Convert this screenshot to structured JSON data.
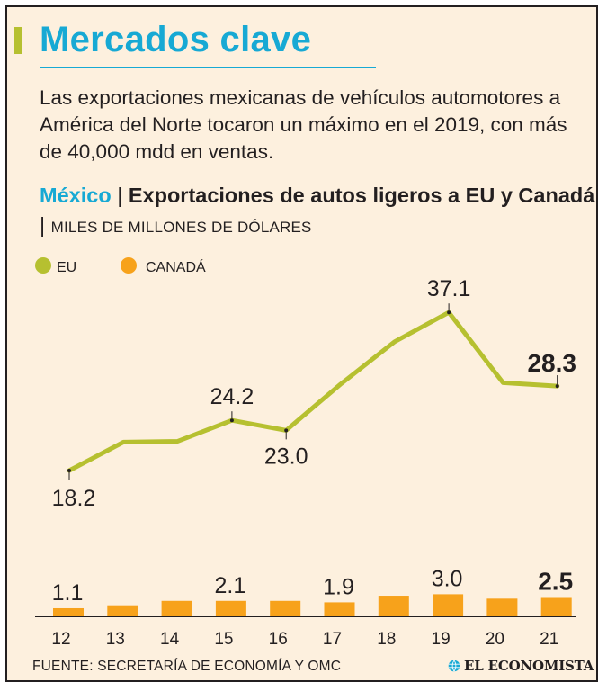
{
  "header": {
    "title": "Mercados clave",
    "intro": "Las exportaciones mexicanas de vehículos automotores a América del Norte tocaron un máximo en el 2019, con más de 40,000 mdd en ventas."
  },
  "subtitle": {
    "country": "México",
    "separator": "|",
    "title": "Exportaciones de autos ligeros a EU y Canadá",
    "units": "MILES DE MILLONES DE DÓLARES"
  },
  "colors": {
    "accent": "#17a9d4",
    "eu_line": "#b6c030",
    "canada_bar": "#f7a21b",
    "background": "#fdf0de",
    "text": "#231f20"
  },
  "chart_data": {
    "type": "line+bar",
    "x": [
      "12",
      "13",
      "14",
      "15",
      "16",
      "17",
      "18",
      "19",
      "20",
      "21"
    ],
    "series": [
      {
        "name": "EU",
        "kind": "line",
        "values": [
          18.2,
          21.6,
          21.7,
          24.2,
          23.0,
          28.5,
          33.6,
          37.1,
          28.7,
          28.3
        ],
        "labeled_indices": [
          0,
          3,
          4,
          7,
          9
        ],
        "label_positions": [
          "below",
          "above",
          "below",
          "above",
          "above"
        ],
        "highlight_index": 9
      },
      {
        "name": "CANADÁ",
        "kind": "bar",
        "values": [
          1.1,
          1.5,
          2.1,
          2.1,
          2.1,
          1.9,
          2.8,
          3.0,
          2.4,
          2.5
        ],
        "labeled_indices": [
          0,
          3,
          5,
          7,
          9
        ],
        "highlight_index": 9
      }
    ],
    "legend": [
      {
        "name": "EU",
        "icon": "circle-dot-icon"
      },
      {
        "name": "CANADÁ",
        "icon": "circle-dot-icon"
      }
    ],
    "legend_position": "top-left",
    "eu_range": [
      15,
      40
    ],
    "canada_range": [
      0,
      3.5
    ],
    "grid": false
  },
  "footer": {
    "source": "FUENTE: SECRETARÍA DE ECONOMÍA Y OMC",
    "brand": "EL ECONOMISTA",
    "brand_icon": "globe-icon"
  }
}
